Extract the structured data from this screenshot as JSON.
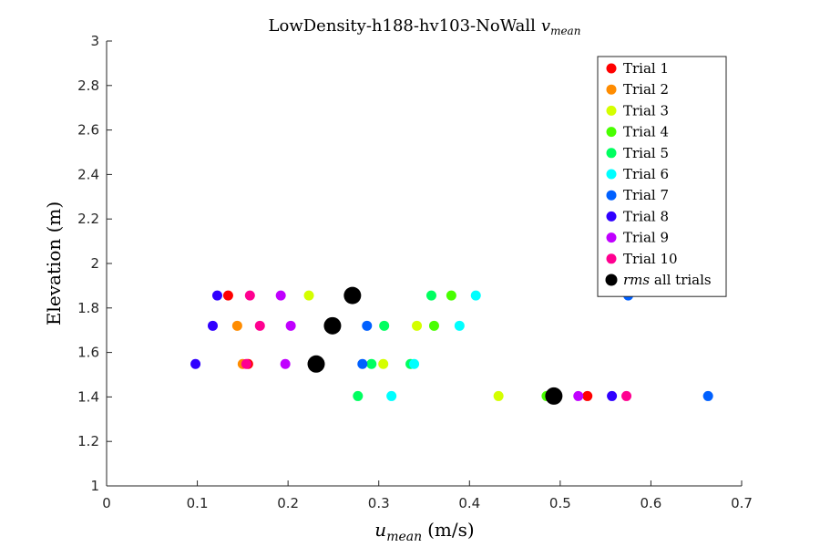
{
  "chart_data": {
    "type": "scatter",
    "title": "LowDensity-h188-hv103-NoWall",
    "title_math": "v",
    "title_math_sub": "mean",
    "xlabel": "(m/s)",
    "xlabel_math": "u",
    "xlabel_math_sub": "mean",
    "ylabel": "Elevation (m)",
    "xlim": [
      0,
      0.7
    ],
    "ylim": [
      1,
      3
    ],
    "xticks": [
      "0",
      "0.1",
      "0.2",
      "0.3",
      "0.4",
      "0.5",
      "0.6",
      "0.7"
    ],
    "xtick_values": [
      0,
      0.1,
      0.2,
      0.3,
      0.4,
      0.5,
      0.6,
      0.7
    ],
    "yticks": [
      "1",
      "1.2",
      "1.4",
      "1.6",
      "1.8",
      "2",
      "2.2",
      "2.4",
      "2.6",
      "2.8",
      "3"
    ],
    "ytick_values": [
      1,
      1.2,
      1.4,
      1.6,
      1.8,
      2,
      2.2,
      2.4,
      2.6,
      2.8,
      3
    ],
    "grid": false,
    "legend_position": "top-right",
    "series": [
      {
        "name": "Trial 1",
        "color": "#ff0000",
        "points": [
          [
            0.134,
            1.856
          ],
          [
            0.156,
            1.548
          ],
          [
            0.53,
            1.404
          ]
        ]
      },
      {
        "name": "Trial 2",
        "color": "#ff8c00",
        "points": [
          [
            0.144,
            1.72
          ],
          [
            0.15,
            1.548
          ],
          [
            0.488,
            1.404
          ]
        ]
      },
      {
        "name": "Trial 3",
        "color": "#d4ff00",
        "points": [
          [
            0.223,
            1.856
          ],
          [
            0.342,
            1.72
          ],
          [
            0.305,
            1.548
          ],
          [
            0.432,
            1.404
          ]
        ]
      },
      {
        "name": "Trial 4",
        "color": "#48ff00",
        "points": [
          [
            0.38,
            1.856
          ],
          [
            0.361,
            1.72
          ],
          [
            0.485,
            1.404
          ]
        ]
      },
      {
        "name": "Trial 5",
        "color": "#00ff60",
        "points": [
          [
            0.358,
            1.856
          ],
          [
            0.306,
            1.72
          ],
          [
            0.292,
            1.548
          ],
          [
            0.335,
            1.548
          ],
          [
            0.277,
            1.404
          ]
        ]
      },
      {
        "name": "Trial 6",
        "color": "#00ffff",
        "points": [
          [
            0.407,
            1.856
          ],
          [
            0.389,
            1.72
          ],
          [
            0.339,
            1.548
          ],
          [
            0.314,
            1.404
          ]
        ]
      },
      {
        "name": "Trial 7",
        "color": "#0060ff",
        "points": [
          [
            0.575,
            1.856
          ],
          [
            0.287,
            1.72
          ],
          [
            0.282,
            1.548
          ],
          [
            0.663,
            1.404
          ]
        ]
      },
      {
        "name": "Trial 8",
        "color": "#3000ff",
        "points": [
          [
            0.122,
            1.856
          ],
          [
            0.117,
            1.72
          ],
          [
            0.098,
            1.548
          ],
          [
            0.557,
            1.404
          ]
        ]
      },
      {
        "name": "Trial 9",
        "color": "#c000ff",
        "points": [
          [
            0.192,
            1.856
          ],
          [
            0.203,
            1.72
          ],
          [
            0.197,
            1.548
          ],
          [
            0.52,
            1.404
          ]
        ]
      },
      {
        "name": "Trial 10",
        "color": "#ff0090",
        "points": [
          [
            0.158,
            1.856
          ],
          [
            0.169,
            1.72
          ],
          [
            0.154,
            1.548
          ],
          [
            0.573,
            1.404
          ]
        ]
      },
      {
        "name": "all trials",
        "name_math": "rms",
        "color": "#000000",
        "large": true,
        "points": [
          [
            0.271,
            1.856
          ],
          [
            0.249,
            1.72
          ],
          [
            0.231,
            1.548
          ],
          [
            0.493,
            1.404
          ]
        ]
      }
    ]
  }
}
